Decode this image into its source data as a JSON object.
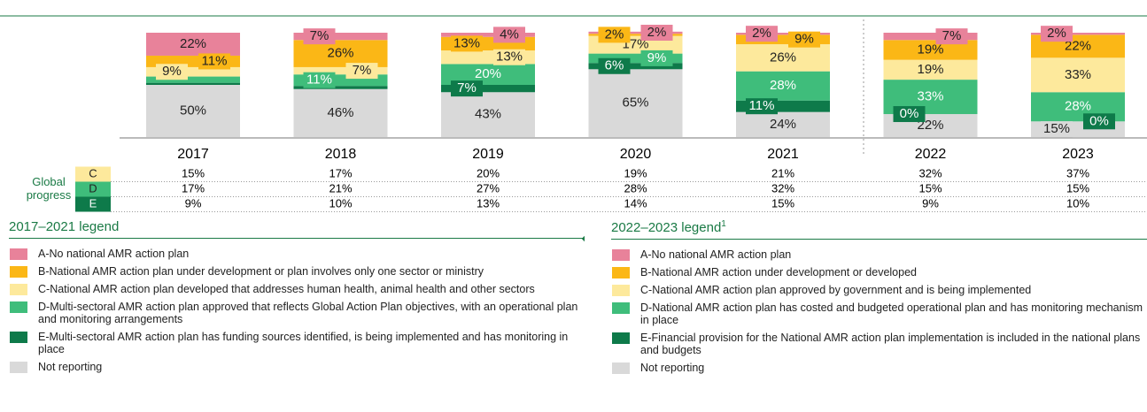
{
  "chart_data": {
    "type": "bar",
    "categories": [
      "2017",
      "2018",
      "2019",
      "2020",
      "2021",
      "2022",
      "2023"
    ],
    "ylim": [
      0,
      100
    ],
    "series": [
      {
        "color": "#e8829a",
        "values": [
          22,
          7,
          4,
          2,
          2,
          7,
          2
        ],
        "value_labels": [
          "22%",
          "7%",
          "4%",
          "2%",
          "2%",
          "7%",
          "2%"
        ]
      },
      {
        "color": "#fbb716",
        "values": [
          11,
          26,
          13,
          2,
          9,
          19,
          22
        ],
        "value_labels": [
          "11%",
          "26%",
          "13%",
          "2%",
          "9%",
          "19%",
          "22%"
        ]
      },
      {
        "color": "#fde99c",
        "values": [
          9,
          7,
          13,
          17,
          26,
          19,
          33
        ],
        "value_labels": [
          "9%",
          "7%",
          "13%",
          "17%",
          "26%",
          "19%",
          "33%"
        ]
      },
      {
        "color": "#3fbd7b",
        "values": [
          6,
          11,
          20,
          9,
          28,
          33,
          28
        ],
        "value_labels": [
          null,
          "11%",
          "20%",
          "9%",
          "28%",
          "33%",
          "28%"
        ]
      },
      {
        "color": "#0e7a4a",
        "values": [
          2,
          3,
          7,
          6,
          11,
          0,
          0
        ],
        "value_labels": [
          null,
          null,
          "7%",
          "6%",
          "11%",
          "0%",
          "0%"
        ]
      },
      {
        "color": "#d9d9d9",
        "values": [
          50,
          46,
          43,
          65,
          24,
          22,
          15
        ],
        "value_labels": [
          "50%",
          "46%",
          "43%",
          "65%",
          "24%",
          "22%",
          "15%"
        ]
      }
    ]
  },
  "table": {
    "row_header": "Global progress",
    "rows": [
      {
        "key": "C",
        "color": "#fde99c",
        "cells": [
          "15%",
          "17%",
          "20%",
          "19%",
          "21%",
          "32%",
          "37%"
        ]
      },
      {
        "key": "D",
        "color": "#3fbd7b",
        "cells": [
          "17%",
          "21%",
          "27%",
          "28%",
          "32%",
          "15%",
          "15%"
        ]
      },
      {
        "key": "E",
        "color": "#0e7a4a",
        "cells": [
          "9%",
          "10%",
          "13%",
          "14%",
          "15%",
          "9%",
          "10%"
        ]
      }
    ]
  },
  "legend_2017_2021": {
    "title": "2017–2021 legend",
    "items": [
      "A-No national AMR action plan",
      "B-National AMR action plan under development or plan involves only one sector or ministry",
      "C-National AMR action plan developed that addresses human health, animal health and other sectors",
      "D-Multi-sectoral AMR action plan approved that reflects Global Action Plan objectives, with an operational plan and monitoring arrangements",
      "E-Multi-sectoral AMR action plan has funding sources identified, is being implemented and has monitoring in place",
      "Not reporting"
    ]
  },
  "legend_2022_2023": {
    "title": "2022–2023 legend",
    "note": "1",
    "items": [
      "A-No national AMR action plan",
      "B-National AMR action under development or developed",
      "C-National AMR action plan approved by government and is being implemented",
      "D-National AMR action plan has costed and budgeted operational plan and has monitoring mechanism in place",
      "E-Financial provision for the National AMR action plan implementation is included in the national plans and budgets",
      "Not reporting"
    ]
  }
}
